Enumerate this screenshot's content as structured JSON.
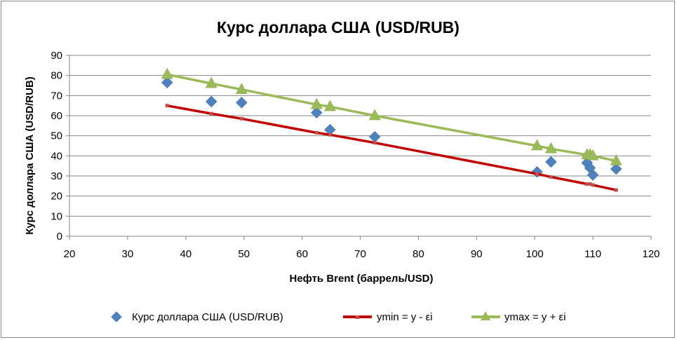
{
  "chart_data": {
    "type": "scatter",
    "title": "Курс доллара США (USD/RUB)",
    "xlabel": "Нефть Brent (баррель/USD)",
    "ylabel": "Курс доллара США (USD/RUB)",
    "xlim": [
      20,
      120
    ],
    "ylim": [
      0,
      90
    ],
    "xticks": [
      20,
      30,
      40,
      50,
      60,
      70,
      80,
      90,
      100,
      110,
      120
    ],
    "yticks": [
      0,
      10,
      20,
      30,
      40,
      50,
      60,
      70,
      80,
      90
    ],
    "grid": "horizontal",
    "legend_position": "bottom",
    "series": [
      {
        "name": "Курс доллара США (USD/RUB)",
        "marker": "diamond",
        "color": "#4F81BD",
        "points": [
          [
            36.8,
            76.5
          ],
          [
            44.4,
            67.0
          ],
          [
            49.6,
            66.5
          ],
          [
            62.5,
            61.5
          ],
          [
            64.8,
            53.0
          ],
          [
            72.5,
            49.5
          ],
          [
            100.4,
            32.0
          ],
          [
            102.8,
            37.0
          ],
          [
            109.0,
            36.5
          ],
          [
            109.5,
            34.0
          ],
          [
            110.0,
            30.5
          ],
          [
            114.0,
            33.5
          ]
        ]
      },
      {
        "name": "ymin = y - εi",
        "marker": "square",
        "line": true,
        "color": "#C0504D",
        "points": [
          [
            36.8,
            65.0
          ],
          [
            44.4,
            61.0
          ],
          [
            49.6,
            58.5
          ],
          [
            62.5,
            51.5
          ],
          [
            64.8,
            50.5
          ],
          [
            72.5,
            46.5
          ],
          [
            100.4,
            31.0
          ],
          [
            102.8,
            29.5
          ],
          [
            109.0,
            26.0
          ],
          [
            109.5,
            26.0
          ],
          [
            110.0,
            25.5
          ],
          [
            114.0,
            23.0
          ]
        ]
      },
      {
        "name": "ymax = y + εi",
        "marker": "triangle",
        "line": true,
        "color": "#9BBB59",
        "points": [
          [
            36.8,
            80.5
          ],
          [
            44.4,
            76.0
          ],
          [
            49.6,
            73.0
          ],
          [
            62.5,
            65.5
          ],
          [
            64.8,
            64.5
          ],
          [
            72.5,
            60.0
          ],
          [
            100.4,
            45.0
          ],
          [
            102.8,
            43.5
          ],
          [
            109.0,
            40.5
          ],
          [
            109.5,
            40.5
          ],
          [
            110.0,
            40.0
          ],
          [
            114.0,
            37.5
          ]
        ]
      }
    ]
  }
}
